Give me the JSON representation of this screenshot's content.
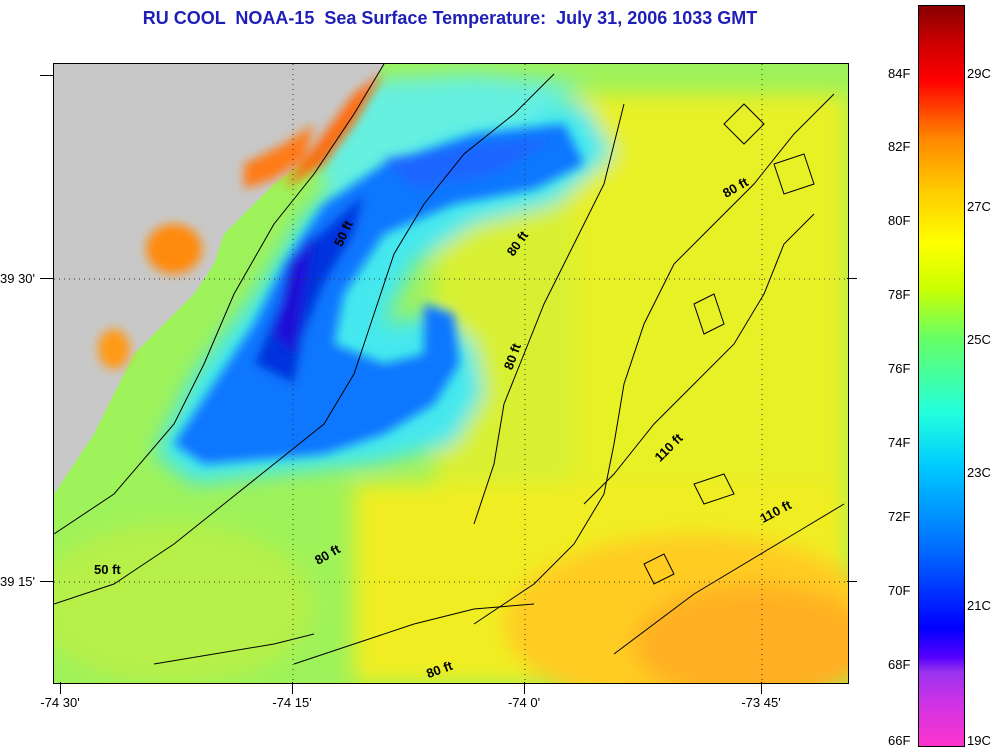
{
  "title": "RU COOL  NOAA-15  Sea Surface Temperature:  July 31, 2006 1033 GMT",
  "map": {
    "latitude_labels": [
      "39 30'",
      "39 15'"
    ],
    "longitude_labels": [
      "-74 30'",
      "-74 15'",
      "-74 0'",
      "-73 45'"
    ],
    "depth_contour_labels": [
      "50 ft",
      "50 ft",
      "80 ft",
      "80 ft",
      "80 ft",
      "80 ft",
      "80 ft",
      "110 ft",
      "110 ft"
    ],
    "land_color": "#c8c8c8",
    "grid_style": "dotted"
  },
  "colorbar": {
    "fahrenheit_labels": [
      "84F",
      "82F",
      "80F",
      "78F",
      "76F",
      "74F",
      "72F",
      "70F",
      "68F",
      "66F"
    ],
    "celsius_labels": [
      "29C",
      "27C",
      "25C",
      "23C",
      "21C",
      "19C"
    ]
  }
}
